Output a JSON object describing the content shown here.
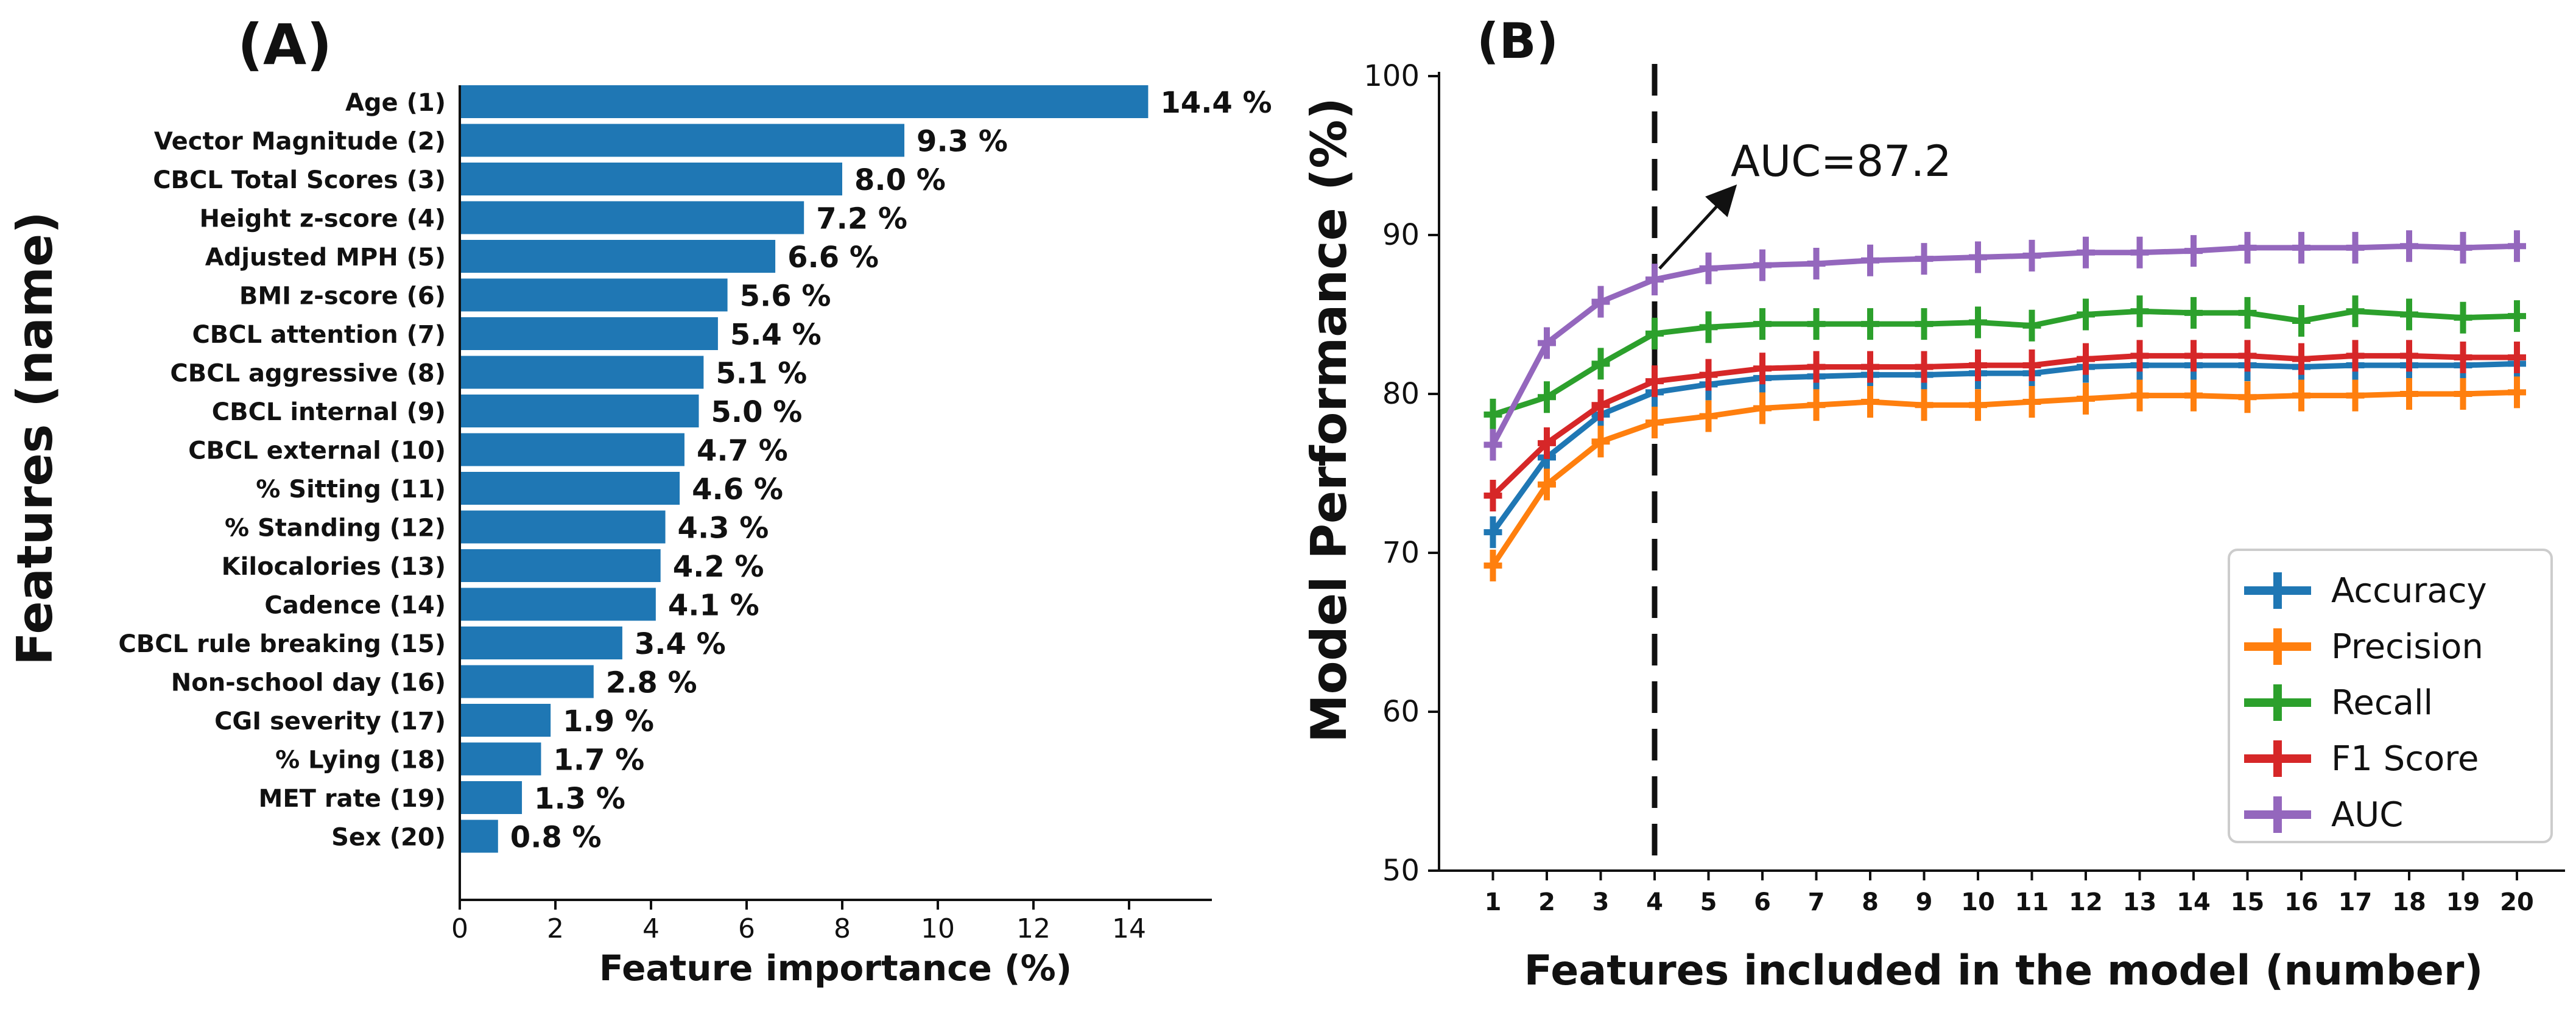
{
  "chart_data": [
    {
      "type": "bar",
      "orientation": "horizontal",
      "panel_label": "(A)",
      "xlabel": "Feature importance (%)",
      "ylabel": "Features (name)",
      "xlim": [
        0,
        16
      ],
      "xticks": [
        0,
        2,
        4,
        6,
        8,
        10,
        12,
        14
      ],
      "color": "#1f77b4",
      "categories": [
        "Age (1)",
        "Vector Magnitude (2)",
        "CBCL Total Scores (3)",
        "Height z-score (4)",
        "Adjusted MPH (5)",
        "BMI z-score (6)",
        "CBCL attention (7)",
        "CBCL aggressive (8)",
        "CBCL internal (9)",
        "CBCL external (10)",
        "% Sitting (11)",
        "% Standing (12)",
        "Kilocalories (13)",
        "Cadence (14)",
        "CBCL rule breaking (15)",
        "Non-school day (16)",
        "CGI severity (17)",
        "% Lying (18)",
        "MET rate (19)",
        "Sex (20)"
      ],
      "values": [
        14.4,
        9.3,
        8.0,
        7.2,
        6.6,
        5.6,
        5.4,
        5.1,
        5.0,
        4.7,
        4.6,
        4.3,
        4.2,
        4.1,
        3.4,
        2.8,
        1.9,
        1.7,
        1.3,
        0.8
      ],
      "value_labels": [
        "14.4 %",
        "9.3 %",
        "8.0 %",
        "7.2 %",
        "6.6 %",
        "5.6 %",
        "5.4 %",
        "5.1 %",
        "5.0 %",
        "4.7 %",
        "4.6 %",
        "4.3 %",
        "4.2 %",
        "4.1 %",
        "3.4 %",
        "2.8 %",
        "1.9 %",
        "1.7 %",
        "1.3 %",
        "0.8 %"
      ]
    },
    {
      "type": "line",
      "panel_label": "(B)",
      "xlabel": "Features included in the model (number)",
      "ylabel": "Model Performance (%)",
      "xlim": [
        0,
        21
      ],
      "ylim": [
        50,
        100
      ],
      "yticks": [
        50,
        60,
        70,
        80,
        90,
        100
      ],
      "x": [
        1,
        2,
        3,
        4,
        5,
        6,
        7,
        8,
        9,
        10,
        11,
        12,
        13,
        14,
        15,
        16,
        17,
        18,
        19,
        20
      ],
      "series": [
        {
          "name": "Accuracy",
          "color": "#1f77b4",
          "values": [
            71.3,
            76.0,
            78.7,
            80.1,
            80.6,
            81.0,
            81.1,
            81.2,
            81.2,
            81.3,
            81.3,
            81.7,
            81.8,
            81.8,
            81.8,
            81.7,
            81.8,
            81.8,
            81.8,
            81.9
          ]
        },
        {
          "name": "Precision",
          "color": "#ff7f0e",
          "values": [
            69.2,
            74.3,
            77.0,
            78.2,
            78.6,
            79.1,
            79.3,
            79.5,
            79.3,
            79.3,
            79.5,
            79.7,
            79.9,
            79.9,
            79.8,
            79.9,
            79.9,
            80.0,
            80.0,
            80.1
          ]
        },
        {
          "name": "Recall",
          "color": "#2ca02c",
          "values": [
            78.7,
            79.8,
            81.9,
            83.8,
            84.2,
            84.4,
            84.4,
            84.4,
            84.4,
            84.5,
            84.3,
            85.0,
            85.2,
            85.1,
            85.1,
            84.6,
            85.2,
            85.0,
            84.8,
            84.9
          ]
        },
        {
          "name": "F1 Score",
          "color": "#d62728",
          "values": [
            73.6,
            76.9,
            79.3,
            80.8,
            81.2,
            81.6,
            81.7,
            81.7,
            81.7,
            81.8,
            81.8,
            82.2,
            82.4,
            82.4,
            82.4,
            82.2,
            82.4,
            82.4,
            82.3,
            82.3
          ]
        },
        {
          "name": "AUC",
          "color": "#9467bd",
          "values": [
            76.8,
            83.2,
            85.8,
            87.2,
            87.9,
            88.1,
            88.2,
            88.4,
            88.5,
            88.6,
            88.7,
            88.9,
            88.9,
            89.0,
            89.2,
            89.2,
            89.2,
            89.3,
            89.2,
            89.3
          ]
        }
      ],
      "vline_x": 4,
      "annotation": {
        "text": "AUC=87.2",
        "x": 4,
        "y": 87.2
      },
      "legend_position": "lower-right"
    }
  ]
}
